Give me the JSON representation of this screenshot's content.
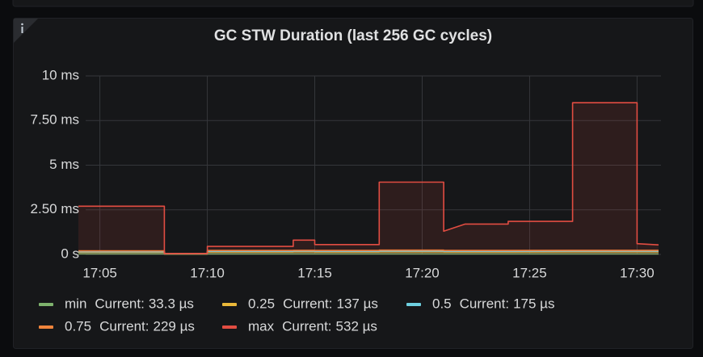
{
  "chart_data": {
    "type": "line",
    "title": "GC STW Duration (last 256 GC cycles)",
    "x": [
      "17:04",
      "17:08",
      "17:08",
      "17:10",
      "17:10",
      "17:14",
      "17:14",
      "17:15",
      "17:15",
      "17:18",
      "17:18",
      "17:21",
      "17:21",
      "17:22",
      "17:24",
      "17:24",
      "17:27",
      "17:27",
      "17:30",
      "17:30",
      "17:31"
    ],
    "xlim": [
      "17:04",
      "17:31"
    ],
    "xticks": [
      "17:05",
      "17:10",
      "17:15",
      "17:20",
      "17:25",
      "17:30"
    ],
    "ylim": [
      0,
      10
    ],
    "yticks": [
      {
        "value": 0,
        "label": "0 s"
      },
      {
        "value": 2.5,
        "label": "2.50 ms"
      },
      {
        "value": 5,
        "label": "5 ms"
      },
      {
        "value": 7.5,
        "label": "7.50 ms"
      },
      {
        "value": 10,
        "label": "10 ms"
      }
    ],
    "grid": true,
    "legend_current_label": "Current:",
    "series": [
      {
        "name": "min",
        "color": "#7eb26d",
        "current": "33.3 µs",
        "values": [
          0.03,
          0.03,
          0.02,
          0.02,
          0.03,
          0.03,
          0.03,
          0.03,
          0.03,
          0.03,
          0.03,
          0.03,
          0.03,
          0.03,
          0.03,
          0.03,
          0.03,
          0.03,
          0.03,
          0.03,
          0.0333
        ]
      },
      {
        "name": "0.25",
        "color": "#eab839",
        "current": "137 µs",
        "values": [
          0.12,
          0.12,
          0.03,
          0.03,
          0.13,
          0.13,
          0.14,
          0.14,
          0.13,
          0.13,
          0.14,
          0.14,
          0.13,
          0.13,
          0.13,
          0.13,
          0.14,
          0.14,
          0.14,
          0.14,
          0.137
        ]
      },
      {
        "name": "0.5",
        "color": "#6ed0e0",
        "current": "175 µs",
        "values": [
          0.15,
          0.15,
          0.04,
          0.04,
          0.17,
          0.17,
          0.18,
          0.18,
          0.17,
          0.17,
          0.18,
          0.18,
          0.17,
          0.17,
          0.17,
          0.17,
          0.18,
          0.18,
          0.18,
          0.18,
          0.175
        ]
      },
      {
        "name": "0.75",
        "color": "#ef843c",
        "current": "229 µs",
        "values": [
          0.2,
          0.2,
          0.05,
          0.05,
          0.22,
          0.22,
          0.23,
          0.23,
          0.22,
          0.22,
          0.24,
          0.24,
          0.22,
          0.22,
          0.22,
          0.22,
          0.23,
          0.23,
          0.23,
          0.23,
          0.229
        ]
      },
      {
        "name": "max",
        "color": "#e24d42",
        "current": "532 µs",
        "fill": true,
        "values": [
          2.7,
          2.7,
          0.05,
          0.05,
          0.45,
          0.45,
          0.8,
          0.8,
          0.55,
          0.55,
          4.05,
          4.05,
          1.3,
          1.7,
          1.7,
          1.85,
          1.85,
          8.5,
          8.5,
          0.6,
          0.532
        ]
      }
    ]
  }
}
